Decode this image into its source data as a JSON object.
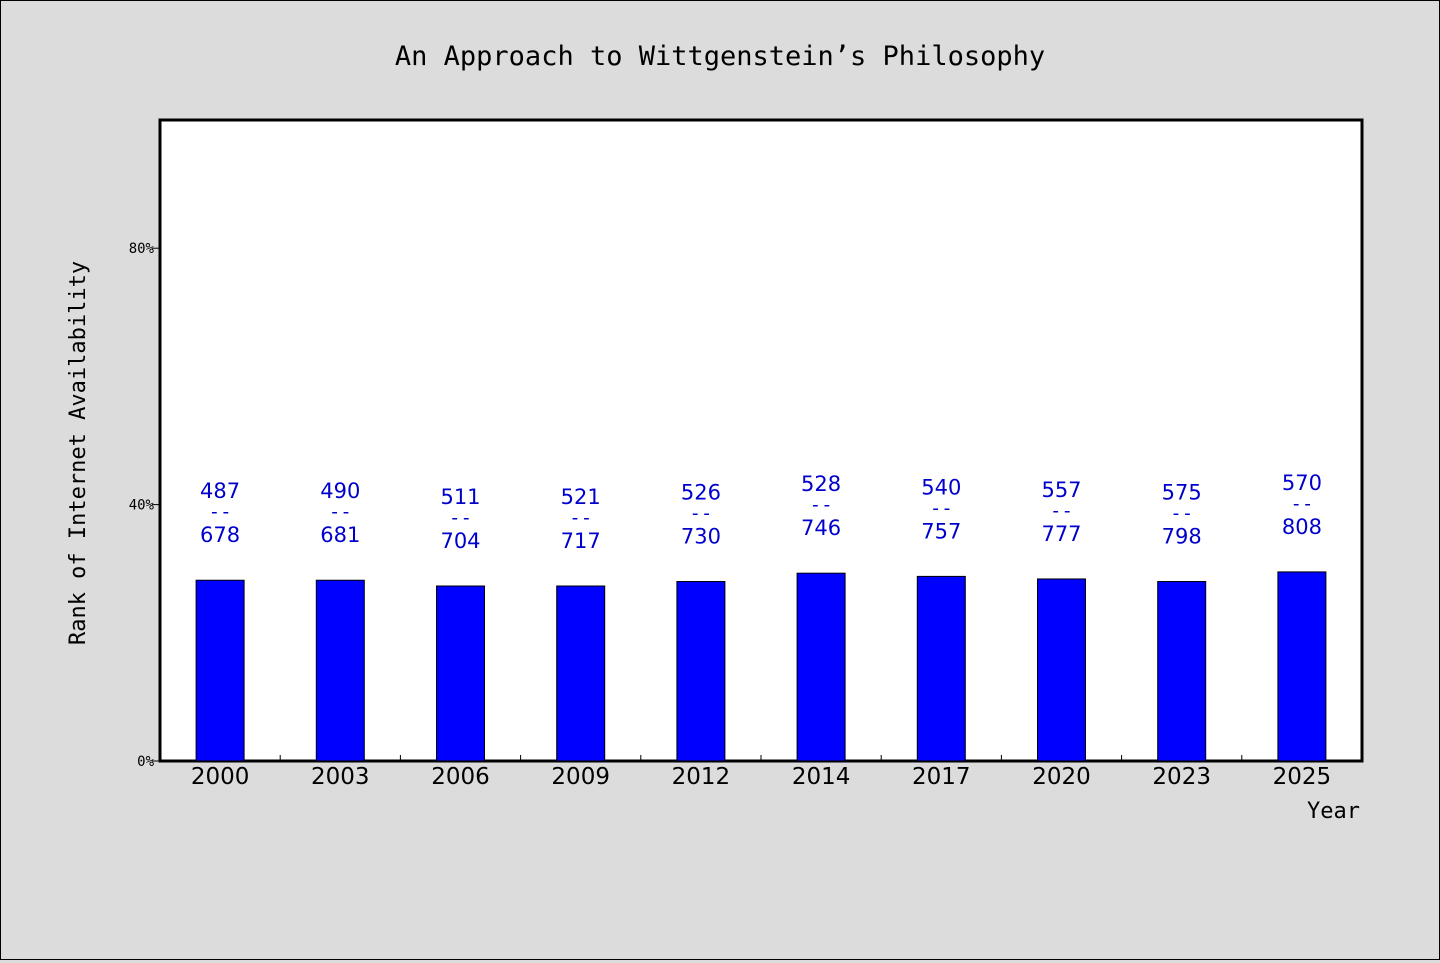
{
  "chart_data": {
    "type": "bar",
    "title": "An Approach to Wittgenstein’s Philosophy",
    "xlabel": "Year",
    "ylabel": "Rank of Internet Availability",
    "categories": [
      "2000",
      "2003",
      "2006",
      "2009",
      "2012",
      "2014",
      "2017",
      "2020",
      "2023",
      "2025"
    ],
    "values": [
      28.2,
      28.2,
      27.3,
      27.3,
      28.0,
      29.3,
      28.8,
      28.4,
      28.0,
      29.5
    ],
    "labels": [
      {
        "top": "487",
        "sep": "--",
        "bottom": "678"
      },
      {
        "top": "490",
        "sep": "--",
        "bottom": "681"
      },
      {
        "top": "511",
        "sep": "--",
        "bottom": "704"
      },
      {
        "top": "521",
        "sep": "--",
        "bottom": "717"
      },
      {
        "top": "526",
        "sep": "--",
        "bottom": "730"
      },
      {
        "top": "528",
        "sep": "--",
        "bottom": "746"
      },
      {
        "top": "540",
        "sep": "--",
        "bottom": "757"
      },
      {
        "top": "557",
        "sep": "--",
        "bottom": "777"
      },
      {
        "top": "575",
        "sep": "--",
        "bottom": "798"
      },
      {
        "top": "570",
        "sep": "--",
        "bottom": "808"
      }
    ],
    "ylim": [
      0,
      100
    ],
    "yticks": [
      {
        "value": 0,
        "label": "0%"
      },
      {
        "value": 40,
        "label": "40%"
      },
      {
        "value": 80,
        "label": "80%"
      }
    ],
    "grid": false,
    "colors": {
      "bar": "#0000ff",
      "label": "#0000cd",
      "plot_bg": "#ffffff",
      "page_bg": "#dcdcdc"
    }
  }
}
